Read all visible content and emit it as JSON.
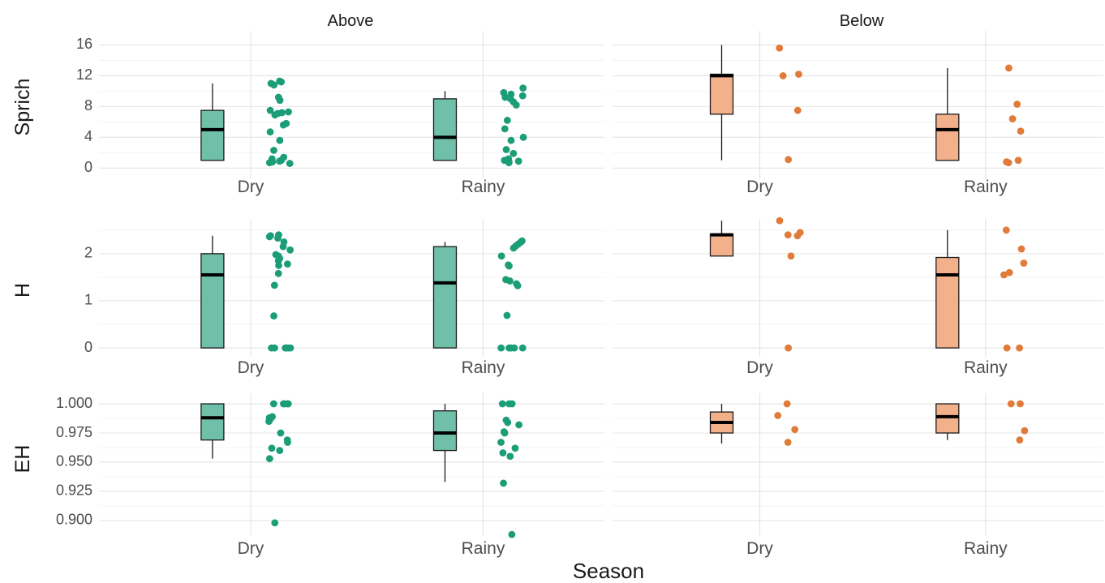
{
  "chart_data": {
    "type": "boxplot",
    "x_title": "Season",
    "categories": [
      "Dry",
      "Rainy"
    ],
    "columns": [
      "Above",
      "Below"
    ],
    "colors": {
      "Above": "#1b9e77",
      "Below": "#e07b39"
    },
    "fill_colors": {
      "Above": "#6fbfa9",
      "Below": "#f2b18a"
    },
    "grid": true,
    "rows": [
      {
        "name": "Sprich",
        "ylim": [
          -0.5,
          17
        ],
        "yticks": [
          {
            "value": 0,
            "label": "0"
          },
          {
            "value": 4,
            "label": "4"
          },
          {
            "value": 8,
            "label": "8"
          },
          {
            "value": 12,
            "label": "12"
          },
          {
            "value": 16,
            "label": "16"
          }
        ],
        "boxes": {
          "Above": {
            "Dry": {
              "whisker_low": 1,
              "q1": 1,
              "median": 5,
              "q3": 7.5,
              "whisker_high": 11,
              "points": [
                11.3,
                11.2,
                11.0,
                10.8,
                9.2,
                8.8,
                7.5,
                7.3,
                7.2,
                7.1,
                6.9,
                5.8,
                5.6,
                4.7,
                3.6,
                2.3,
                1.4,
                1.2,
                1.0,
                0.9,
                0.8,
                0.7,
                0.6
              ]
            },
            "Rainy": {
              "whisker_low": 1,
              "q1": 1,
              "median": 4,
              "q3": 9,
              "whisker_high": 10,
              "points": [
                10.4,
                9.8,
                9.6,
                9.4,
                9.2,
                9.0,
                8.6,
                8.2,
                6.2,
                5.1,
                4.0,
                3.6,
                2.4,
                1.9,
                1.2,
                1.0,
                0.9,
                0.8,
                0.7
              ]
            }
          },
          "Below": {
            "Dry": {
              "whisker_low": 1,
              "q1": 7,
              "median": 12,
              "q3": 12.2,
              "whisker_high": 16,
              "points": [
                15.6,
                12.2,
                12.0,
                7.5,
                1.1
              ]
            },
            "Rainy": {
              "whisker_low": 1,
              "q1": 1,
              "median": 5,
              "q3": 7,
              "whisker_high": 13,
              "points": [
                13.0,
                8.3,
                6.4,
                4.8,
                1.0,
                0.8,
                0.7
              ]
            }
          }
        }
      },
      {
        "name": "H",
        "ylim": [
          -0.05,
          2.6
        ],
        "yticks": [
          {
            "value": 0,
            "label": "0"
          },
          {
            "value": 1,
            "label": "1"
          },
          {
            "value": 2,
            "label": "2"
          }
        ],
        "boxes": {
          "Above": {
            "Dry": {
              "whisker_low": 0,
              "q1": 0,
              "median": 1.55,
              "q3": 2.0,
              "whisker_high": 2.38,
              "points": [
                2.4,
                2.38,
                2.36,
                2.33,
                2.25,
                2.15,
                2.08,
                1.98,
                1.95,
                1.9,
                1.85,
                1.78,
                1.75,
                1.58,
                1.33,
                0.68,
                0.0,
                0.0,
                0.0,
                0.0,
                0.0,
                0.0
              ]
            },
            "Rainy": {
              "whisker_low": 0,
              "q1": 0,
              "median": 1.38,
              "q3": 2.15,
              "whisker_high": 2.25,
              "points": [
                2.27,
                2.24,
                2.2,
                2.16,
                2.12,
                1.95,
                1.76,
                1.74,
                1.45,
                1.42,
                1.36,
                1.32,
                0.69,
                0.0,
                0.0,
                0.0,
                0.0,
                0.0
              ]
            }
          },
          "Below": {
            "Dry": {
              "whisker_low": 1.95,
              "q1": 1.95,
              "median": 2.4,
              "q3": 2.42,
              "whisker_high": 2.7,
              "points": [
                2.7,
                2.45,
                2.4,
                2.38,
                1.95,
                0.0
              ]
            },
            "Rainy": {
              "whisker_low": 0,
              "q1": 0,
              "median": 1.55,
              "q3": 1.92,
              "whisker_high": 2.5,
              "points": [
                2.5,
                2.1,
                1.8,
                1.6,
                1.55,
                0.0,
                0.0
              ]
            }
          }
        }
      },
      {
        "name": "EH",
        "ylim": [
          0.893,
          1.0035
        ],
        "yticks": [
          {
            "value": 0.9,
            "label": "0.900"
          },
          {
            "value": 0.925,
            "label": "0.925"
          },
          {
            "value": 0.95,
            "label": "0.950"
          },
          {
            "value": 0.975,
            "label": "0.975"
          },
          {
            "value": 1.0,
            "label": "1.000"
          }
        ],
        "boxes": {
          "Above": {
            "Dry": {
              "whisker_low": 0.953,
              "q1": 0.969,
              "median": 0.988,
              "q3": 1.0,
              "whisker_high": 1.0,
              "points": [
                1.0,
                1.0,
                1.0,
                1.0,
                1.0,
                0.989,
                0.988,
                0.987,
                0.985,
                0.975,
                0.969,
                0.967,
                0.962,
                0.96,
                0.953,
                0.898
              ]
            },
            "Rainy": {
              "whisker_low": 0.933,
              "q1": 0.96,
              "median": 0.975,
              "q3": 0.994,
              "whisker_high": 1.0,
              "points": [
                1.0,
                1.0,
                1.0,
                0.986,
                0.984,
                0.982,
                0.976,
                0.975,
                0.967,
                0.962,
                0.958,
                0.955,
                0.932,
                0.888
              ]
            }
          },
          "Below": {
            "Dry": {
              "whisker_low": 0.966,
              "q1": 0.975,
              "median": 0.984,
              "q3": 0.993,
              "whisker_high": 1.0,
              "points": [
                1.0,
                0.99,
                0.978,
                0.967
              ]
            },
            "Rainy": {
              "whisker_low": 0.969,
              "q1": 0.975,
              "median": 0.989,
              "q3": 1.0,
              "whisker_high": 1.0,
              "points": [
                1.0,
                1.0,
                0.977,
                0.969
              ]
            }
          }
        }
      }
    ]
  }
}
